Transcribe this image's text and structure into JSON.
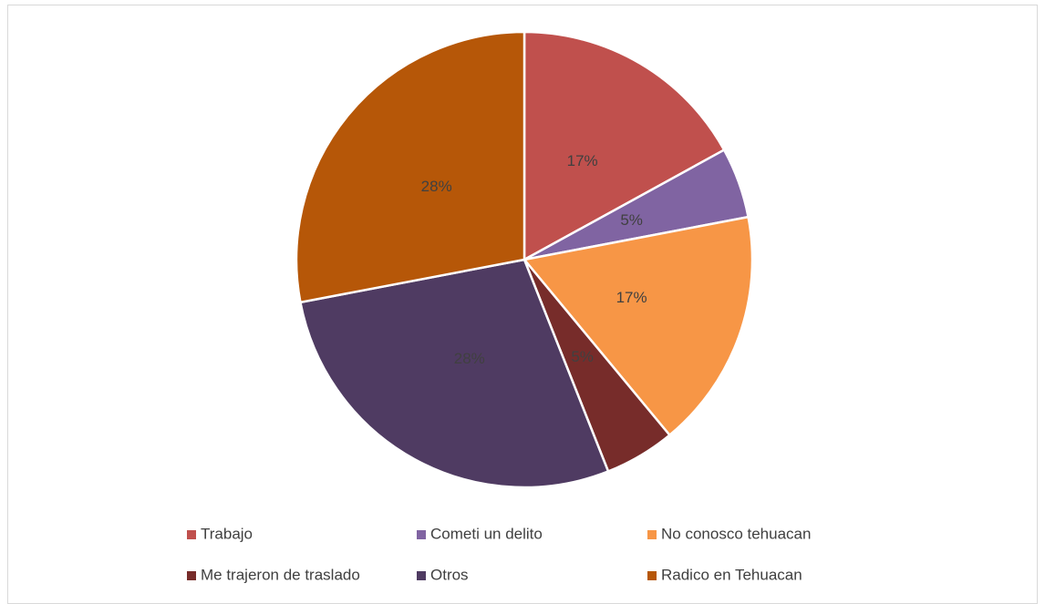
{
  "chart_data": {
    "type": "pie",
    "categories": [
      "Trabajo",
      "Cometi un delito",
      "No conosco tehuacan",
      "Me trajeron de traslado",
      "Otros",
      "Radico en Tehuacan"
    ],
    "values": [
      17,
      5,
      17,
      5,
      28,
      28
    ],
    "value_labels": [
      "17%",
      "5%",
      "17%",
      "5%",
      "28%",
      "28%"
    ],
    "colors": [
      "#c0504d",
      "#8064a2",
      "#f79646",
      "#772c2a",
      "#4f3b62",
      "#b65708"
    ],
    "legend": "bottom"
  }
}
